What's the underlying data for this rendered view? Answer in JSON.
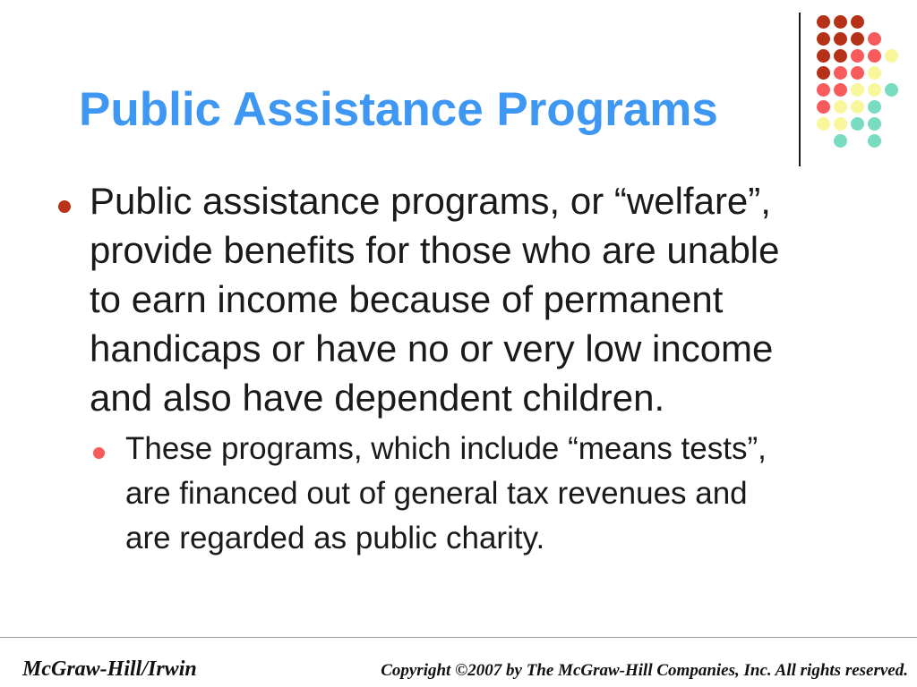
{
  "slide": {
    "title": "Public Assistance Programs",
    "title_color": "#3E97F2"
  },
  "decoration": {
    "grid": [
      [
        "darkred",
        "darkred",
        "darkred",
        "",
        ""
      ],
      [
        "darkred",
        "darkred",
        "darkred",
        "salmon",
        ""
      ],
      [
        "darkred",
        "darkred",
        "salmon",
        "salmon",
        "yellow"
      ],
      [
        "darkred",
        "salmon",
        "salmon",
        "yellow",
        ""
      ],
      [
        "salmon",
        "salmon",
        "yellow",
        "yellow",
        "teal"
      ],
      [
        "salmon",
        "yellow",
        "yellow",
        "teal",
        ""
      ],
      [
        "yellow",
        "yellow",
        "teal",
        "teal",
        ""
      ],
      [
        "",
        "teal",
        "",
        "teal",
        ""
      ]
    ],
    "colors": {
      "darkred": "#B53218",
      "salmon": "#F85B5B",
      "yellow": "#F9F79B",
      "teal": "#79DCC1"
    }
  },
  "body": {
    "bullet1": {
      "marker_color": "#B93318",
      "lines": [
        "Public assistance programs, or “welfare”,",
        "provide benefits for those who are unable",
        "to earn income because of permanent",
        "handicaps or have no or very low income",
        "and also have dependent children."
      ]
    },
    "bullet2": {
      "marker_color": "#F85B5B",
      "lines": [
        "These programs, which include “means tests”,",
        "are financed out of general tax revenues and",
        "are regarded as public charity."
      ]
    }
  },
  "footer": {
    "brand": "McGraw-Hill/Irwin",
    "copyright": "Copyright ©2007 by The McGraw-Hill Companies, Inc. All rights reserved."
  }
}
